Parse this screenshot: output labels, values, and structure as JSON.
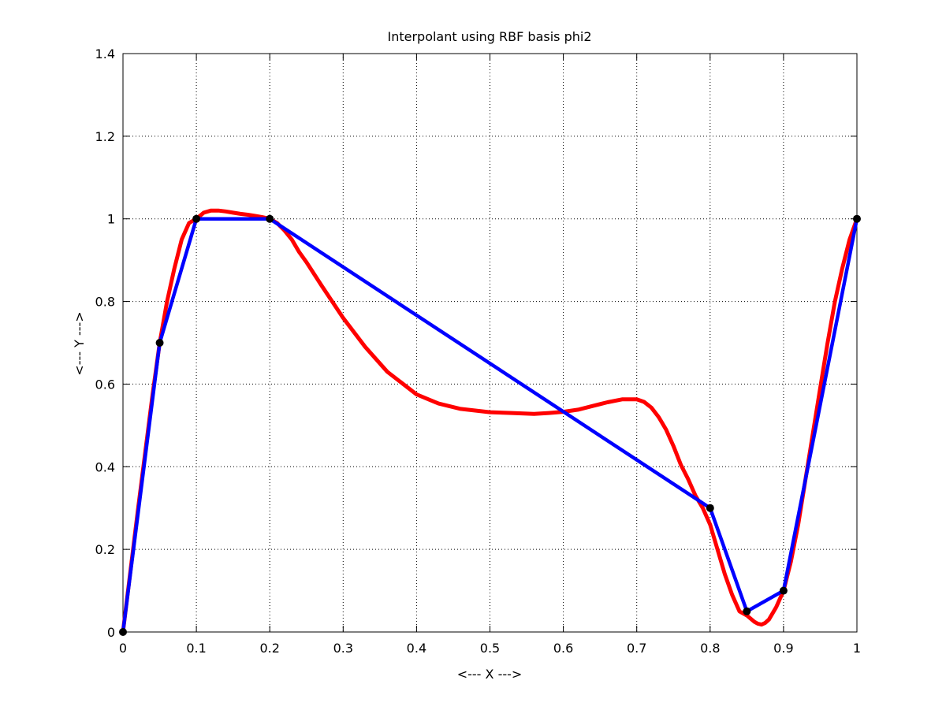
{
  "chart_data": {
    "type": "line",
    "title": "Interpolant using RBF basis phi2",
    "xlabel": "<--- X --->",
    "ylabel": "<--- Y --->",
    "xlim": [
      0,
      1
    ],
    "ylim": [
      0,
      1.4
    ],
    "xticks": [
      0,
      0.1,
      0.2,
      0.3,
      0.4,
      0.5,
      0.6,
      0.7,
      0.8,
      0.9,
      1
    ],
    "xtick_labels": [
      "0",
      "0.1",
      "0.2",
      "0.3",
      "0.4",
      "0.5",
      "0.6",
      "0.7",
      "0.8",
      "0.9",
      "1"
    ],
    "yticks": [
      0,
      0.2,
      0.4,
      0.6,
      0.8,
      1,
      1.2,
      1.4
    ],
    "ytick_labels": [
      "0",
      "0.2",
      "0.4",
      "0.6",
      "0.8",
      "1",
      "1.2",
      "1.4"
    ],
    "grid": true,
    "series": [
      {
        "color": "#ff0000",
        "style": "line",
        "x": [
          0,
          0.02,
          0.04,
          0.05,
          0.06,
          0.07,
          0.08,
          0.09,
          0.1,
          0.11,
          0.12,
          0.13,
          0.14,
          0.15,
          0.16,
          0.17,
          0.18,
          0.19,
          0.2,
          0.21,
          0.22,
          0.23,
          0.24,
          0.25,
          0.27,
          0.3,
          0.33,
          0.36,
          0.4,
          0.43,
          0.46,
          0.5,
          0.53,
          0.56,
          0.58,
          0.6,
          0.62,
          0.64,
          0.66,
          0.68,
          0.7,
          0.71,
          0.72,
          0.73,
          0.74,
          0.75,
          0.76,
          0.77,
          0.78,
          0.79,
          0.8,
          0.81,
          0.82,
          0.83,
          0.84,
          0.85,
          0.86,
          0.865,
          0.87,
          0.875,
          0.88,
          0.89,
          0.9,
          0.91,
          0.92,
          0.93,
          0.94,
          0.95,
          0.96,
          0.97,
          0.98,
          0.99,
          1
        ],
        "y": [
          0,
          0.29,
          0.57,
          0.7,
          0.8,
          0.88,
          0.95,
          0.99,
          1.0,
          1.015,
          1.02,
          1.02,
          1.018,
          1.015,
          1.012,
          1.01,
          1.007,
          1.004,
          1.0,
          0.99,
          0.972,
          0.95,
          0.92,
          0.895,
          0.84,
          0.76,
          0.69,
          0.63,
          0.575,
          0.553,
          0.54,
          0.532,
          0.53,
          0.528,
          0.53,
          0.533,
          0.538,
          0.547,
          0.556,
          0.563,
          0.563,
          0.557,
          0.543,
          0.52,
          0.49,
          0.45,
          0.405,
          0.37,
          0.33,
          0.3,
          0.26,
          0.2,
          0.14,
          0.09,
          0.05,
          0.04,
          0.025,
          0.02,
          0.018,
          0.022,
          0.03,
          0.06,
          0.1,
          0.17,
          0.26,
          0.37,
          0.48,
          0.59,
          0.7,
          0.8,
          0.88,
          0.95,
          1.0
        ]
      },
      {
        "color": "#0000ff",
        "style": "line",
        "x": [
          0,
          0.05,
          0.1,
          0.2,
          0.8,
          0.85,
          0.9,
          1
        ],
        "y": [
          0,
          0.7,
          1.0,
          1.0,
          0.3,
          0.05,
          0.1,
          1.0
        ]
      },
      {
        "color": "#000000",
        "style": "markers",
        "x": [
          0,
          0.05,
          0.1,
          0.2,
          0.8,
          0.85,
          0.9,
          1
        ],
        "y": [
          0,
          0.7,
          1.0,
          1.0,
          0.3,
          0.05,
          0.1,
          1.0
        ]
      }
    ]
  }
}
